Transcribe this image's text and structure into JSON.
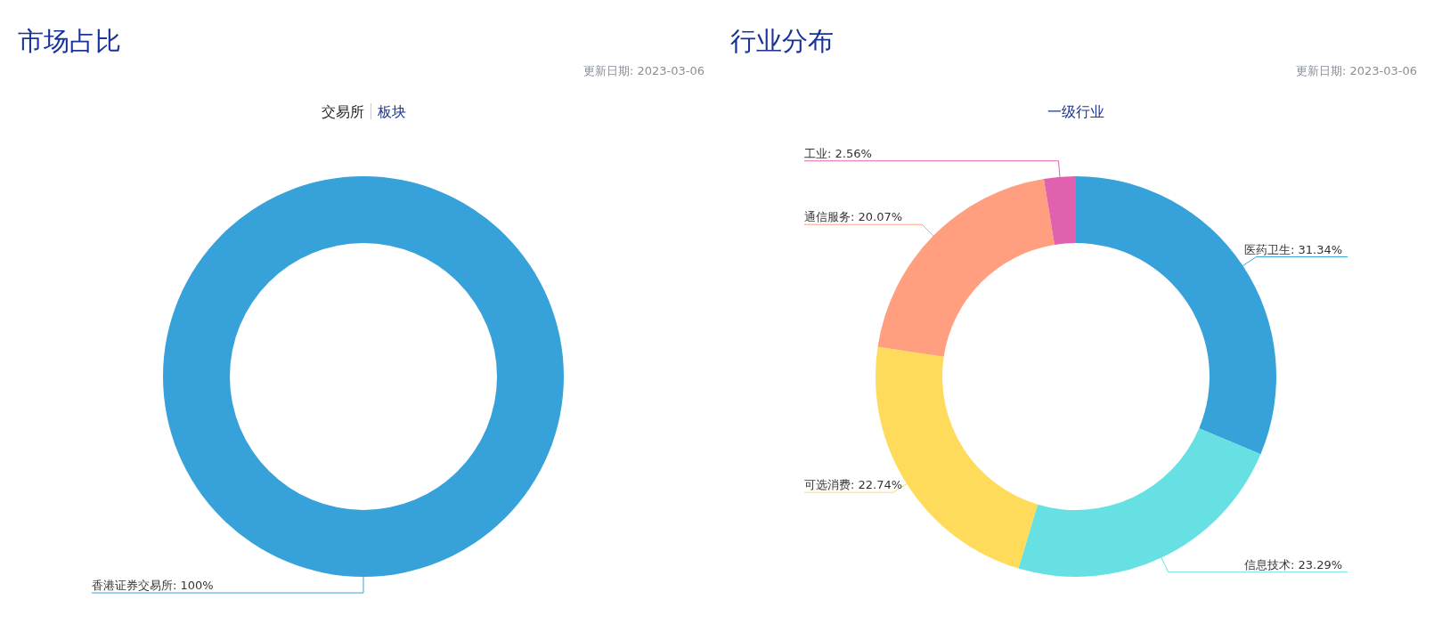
{
  "chart_data": [
    {
      "type": "donut",
      "title": "市场占比",
      "subtitle": "更新日期: 2023-03-06",
      "annotations": [
        "交易所",
        "板块"
      ],
      "value_labels": [
        ": 100%"
      ],
      "categories": [
        "香港证券交易所"
      ],
      "values": [
        100
      ],
      "colors": [
        "#37a2da"
      ]
    },
    {
      "type": "donut",
      "title": "行业分布",
      "subtitle": "更新日期: 2023-03-06",
      "annotations": [
        "一级行业"
      ],
      "value_labels": [
        ": 31.34%",
        ": 23.29%",
        ": 22.74%",
        ": 20.07%",
        ": 2.56%"
      ],
      "categories": [
        "医药卫生",
        "信息技术",
        "可选消费",
        "通信服务",
        "工业"
      ],
      "values": [
        31.34,
        23.29,
        22.74,
        20.07,
        2.56
      ],
      "colors": [
        "#37a2da",
        "#67e0e3",
        "#ffdb5c",
        "#ff9f7f",
        "#e062ae"
      ]
    }
  ]
}
